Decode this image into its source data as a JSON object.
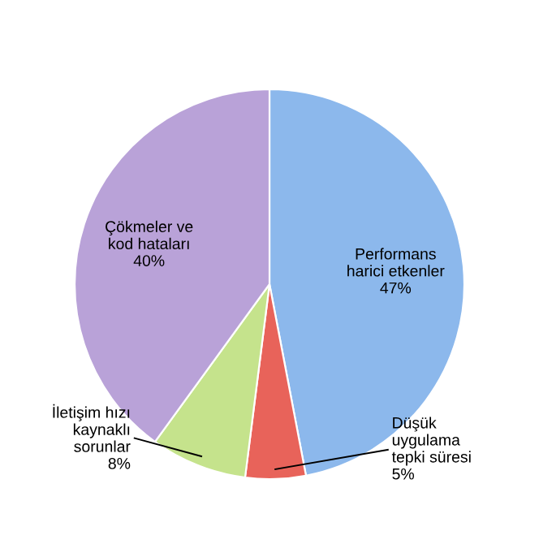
{
  "chart_data": {
    "type": "pie",
    "categories": [
      "Performans\nharici etkenler",
      "Düşük\nuygulama\ntepki süresi",
      "İletişim hızı\nkaynaklı\nsorunlar",
      "Çökmeler ve\nkod hataları"
    ],
    "values": [
      47,
      5,
      8,
      40
    ],
    "value_labels": [
      "47%",
      "5%",
      "8%",
      "40%"
    ],
    "colors": [
      "#8cb8ec",
      "#e8635a",
      "#c5e38c",
      "#b9a2d8"
    ],
    "legend": false
  }
}
